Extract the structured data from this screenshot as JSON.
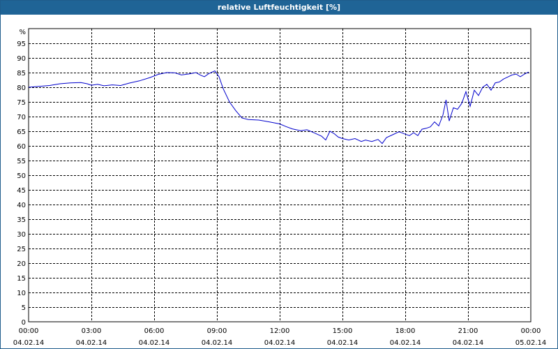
{
  "window": {
    "title": "relative Luftfeuchtigkeit [%]"
  },
  "colors": {
    "titlebar": "#1f6496",
    "line": "#0000cc",
    "grid": "#000000"
  },
  "chart_data": {
    "type": "line",
    "title": "relative Luftfeuchtigkeit [%]",
    "ylabel": "%",
    "xlabel": "",
    "ylim": [
      0,
      100
    ],
    "xlim": [
      0,
      24
    ],
    "grid": true,
    "y_ticks": [
      0,
      5,
      10,
      15,
      20,
      25,
      30,
      35,
      40,
      45,
      50,
      55,
      60,
      65,
      70,
      75,
      80,
      85,
      90,
      95
    ],
    "x_ticks": [
      {
        "t": 0,
        "time": "00:00",
        "date": "04.02.14"
      },
      {
        "t": 3,
        "time": "03:00",
        "date": "04.02.14"
      },
      {
        "t": 6,
        "time": "06:00",
        "date": "04.02.14"
      },
      {
        "t": 9,
        "time": "09:00",
        "date": "04.02.14"
      },
      {
        "t": 12,
        "time": "12:00",
        "date": "04.02.14"
      },
      {
        "t": 15,
        "time": "15:00",
        "date": "04.02.14"
      },
      {
        "t": 18,
        "time": "18:00",
        "date": "04.02.14"
      },
      {
        "t": 21,
        "time": "21:00",
        "date": "04.02.14"
      },
      {
        "t": 24,
        "time": "00:00",
        "date": "05.02.14"
      }
    ],
    "series": [
      {
        "points": [
          [
            0.0,
            80.0
          ],
          [
            0.5,
            80.3
          ],
          [
            1.0,
            80.6
          ],
          [
            1.5,
            81.2
          ],
          [
            2.0,
            81.5
          ],
          [
            2.5,
            81.6
          ],
          [
            2.8,
            81.2
          ],
          [
            3.0,
            80.7
          ],
          [
            3.3,
            81.0
          ],
          [
            3.6,
            80.5
          ],
          [
            4.0,
            80.8
          ],
          [
            4.4,
            80.6
          ],
          [
            4.8,
            81.4
          ],
          [
            5.3,
            82.2
          ],
          [
            5.8,
            83.3
          ],
          [
            6.2,
            84.4
          ],
          [
            6.6,
            85.0
          ],
          [
            7.0,
            84.9
          ],
          [
            7.3,
            84.2
          ],
          [
            7.7,
            84.6
          ],
          [
            8.0,
            85.0
          ],
          [
            8.2,
            84.2
          ],
          [
            8.4,
            83.6
          ],
          [
            8.6,
            84.6
          ],
          [
            8.9,
            85.6
          ],
          [
            9.1,
            83.6
          ],
          [
            9.3,
            79.5
          ],
          [
            9.6,
            75.0
          ],
          [
            9.9,
            72.0
          ],
          [
            10.2,
            69.5
          ],
          [
            10.5,
            69.0
          ],
          [
            11.0,
            68.8
          ],
          [
            11.5,
            68.2
          ],
          [
            12.0,
            67.5
          ],
          [
            12.3,
            66.6
          ],
          [
            12.6,
            65.8
          ],
          [
            13.0,
            65.2
          ],
          [
            13.3,
            65.5
          ],
          [
            13.6,
            64.6
          ],
          [
            14.0,
            63.3
          ],
          [
            14.2,
            62.0
          ],
          [
            14.4,
            65.0
          ],
          [
            14.6,
            64.2
          ],
          [
            14.8,
            63.0
          ],
          [
            15.0,
            62.5
          ],
          [
            15.3,
            62.0
          ],
          [
            15.6,
            62.5
          ],
          [
            15.9,
            61.5
          ],
          [
            16.1,
            62.0
          ],
          [
            16.4,
            61.5
          ],
          [
            16.7,
            62.2
          ],
          [
            16.9,
            60.8
          ],
          [
            17.1,
            62.8
          ],
          [
            17.4,
            63.8
          ],
          [
            17.7,
            64.8
          ],
          [
            18.0,
            64.0
          ],
          [
            18.2,
            63.5
          ],
          [
            18.4,
            64.5
          ],
          [
            18.6,
            63.5
          ],
          [
            18.8,
            65.7
          ],
          [
            19.0,
            66.0
          ],
          [
            19.2,
            66.5
          ],
          [
            19.4,
            68.2
          ],
          [
            19.6,
            66.8
          ],
          [
            19.8,
            70.5
          ],
          [
            19.95,
            75.7
          ],
          [
            20.1,
            68.5
          ],
          [
            20.3,
            73.0
          ],
          [
            20.5,
            72.5
          ],
          [
            20.7,
            74.5
          ],
          [
            20.9,
            78.5
          ],
          [
            21.1,
            73.5
          ],
          [
            21.3,
            79.0
          ],
          [
            21.5,
            77.2
          ],
          [
            21.7,
            80.0
          ],
          [
            21.9,
            81.0
          ],
          [
            22.1,
            79.0
          ],
          [
            22.3,
            81.5
          ],
          [
            22.5,
            81.8
          ],
          [
            22.7,
            82.8
          ],
          [
            22.9,
            83.5
          ],
          [
            23.1,
            84.2
          ],
          [
            23.3,
            84.5
          ],
          [
            23.5,
            83.6
          ],
          [
            23.7,
            84.5
          ],
          [
            23.9,
            85.2
          ]
        ]
      }
    ]
  }
}
